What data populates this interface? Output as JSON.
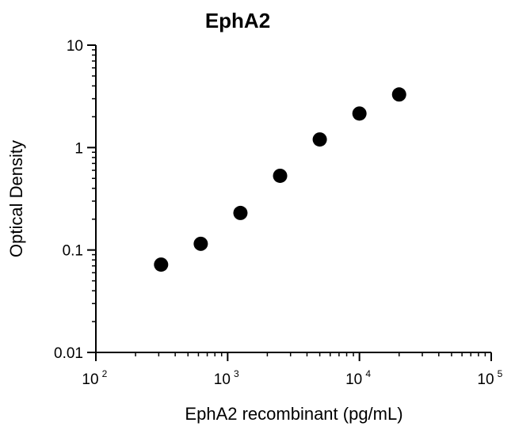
{
  "chart_data": {
    "type": "scatter",
    "title": "EphA2",
    "xlabel": "EphA2 recombinant (pg/mL)",
    "ylabel": "Optical Density",
    "x_scale": "log",
    "y_scale": "log",
    "xlim": [
      100,
      100000
    ],
    "ylim": [
      0.01,
      10
    ],
    "x_ticks": [
      {
        "base": "10",
        "exp": "2"
      },
      {
        "base": "10",
        "exp": "3"
      },
      {
        "base": "10",
        "exp": "4"
      },
      {
        "base": "10",
        "exp": "5"
      }
    ],
    "y_ticks": [
      "10",
      "1",
      "0.1",
      "0.01"
    ],
    "grid": false,
    "marker_color": "#000000",
    "series": [
      {
        "x": [
          312.5,
          625,
          1250,
          2500,
          5000,
          10000,
          20000
        ],
        "y": [
          0.072,
          0.115,
          0.23,
          0.53,
          1.2,
          2.15,
          3.3
        ]
      }
    ]
  }
}
